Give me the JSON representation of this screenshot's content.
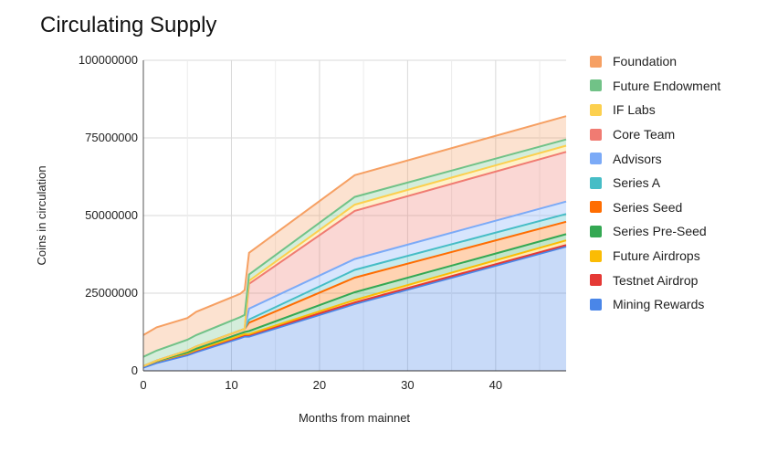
{
  "chart_data": {
    "type": "area",
    "stacked": true,
    "title": "Circulating Supply",
    "xlabel": "Months from mainnet",
    "ylabel": "Coins in circulation",
    "xlim": [
      0,
      48
    ],
    "ylim": [
      0,
      100000000
    ],
    "xticks": [
      0,
      10,
      20,
      30,
      40
    ],
    "yticks": [
      0,
      25000000,
      50000000,
      75000000,
      100000000
    ],
    "ytick_labels": [
      "0",
      "25000000",
      "50000000",
      "75000000",
      "100000000"
    ],
    "grid": true,
    "legend_position": "right",
    "x": [
      0,
      1.5,
      5,
      6,
      11,
      11.5,
      12,
      24,
      48
    ],
    "series": [
      {
        "name": "Mining Rewards",
        "color": "#4a86e8",
        "values": [
          1000000,
          2500000,
          5000000,
          6000000,
          10500000,
          11000000,
          11000000,
          21500000,
          40000000
        ]
      },
      {
        "name": "Testnet Airdrop",
        "color": "#e53935",
        "values": [
          500000,
          500000,
          500000,
          500000,
          500000,
          500000,
          500000,
          500000,
          500000
        ]
      },
      {
        "name": "Future Airdrops",
        "color": "#fbbc04",
        "values": [
          0,
          50000,
          150000,
          200000,
          300000,
          300000,
          300000,
          800000,
          1500000
        ]
      },
      {
        "name": "Series Pre-Seed",
        "color": "#34a853",
        "values": [
          0,
          100000,
          300000,
          400000,
          700000,
          700000,
          1000000,
          2500000,
          2000000
        ]
      },
      {
        "name": "Series Seed",
        "color": "#ff6d01",
        "values": [
          0,
          150000,
          550000,
          700000,
          1000000,
          1000000,
          2700000,
          4700000,
          4000000
        ]
      },
      {
        "name": "Series A",
        "color": "#46bdc6",
        "values": [
          0,
          0,
          0,
          0,
          0,
          0,
          1000000,
          2500000,
          2500000
        ]
      },
      {
        "name": "Advisors",
        "color": "#7baaf7",
        "values": [
          0,
          0,
          0,
          0,
          0,
          0,
          3500000,
          3500000,
          4000000
        ]
      },
      {
        "name": "Core Team",
        "color": "#f07b72",
        "values": [
          0,
          0,
          0,
          0,
          0,
          0,
          8000000,
          15500000,
          16000000
        ]
      },
      {
        "name": "IF Labs",
        "color": "#fcd04f",
        "values": [
          0,
          0,
          0,
          0,
          0,
          0,
          1000000,
          2000000,
          2000000
        ]
      },
      {
        "name": "Future Endowment",
        "color": "#71c287",
        "values": [
          3000000,
          3200000,
          3500000,
          3700000,
          4300000,
          4500000,
          2000000,
          2500000,
          2000000
        ]
      },
      {
        "name": "Foundation",
        "color": "#f6a063",
        "values": [
          7000000,
          7500000,
          7000000,
          7500000,
          7500000,
          8000000,
          7000000,
          7000000,
          7500000
        ]
      }
    ]
  }
}
